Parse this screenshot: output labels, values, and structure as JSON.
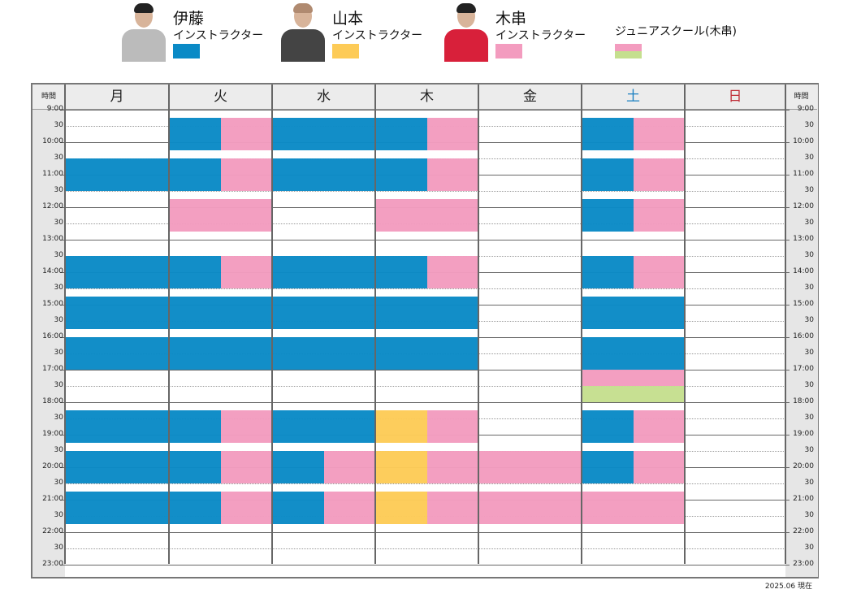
{
  "legend": [
    {
      "name": "伊藤",
      "role": "インストラクター",
      "color": "#0a8ac6",
      "photo": "instructor-ito-photo"
    },
    {
      "name": "山本",
      "role": "インストラクター",
      "color": "#fdcb57",
      "photo": "instructor-yamamoto-photo"
    },
    {
      "name": "木串",
      "role": "インストラクター",
      "color": "#f39cbf",
      "photo": "instructor-kigushi-photo"
    },
    {
      "name": "ジュニアスクール(木串)",
      "colors": [
        "#f39cbf",
        "#c5df8e"
      ]
    }
  ],
  "header": {
    "time_label": "時間",
    "days": [
      "月",
      "火",
      "水",
      "木",
      "金",
      "土",
      "日"
    ],
    "day_colors": [
      "#222",
      "#222",
      "#222",
      "#222",
      "#222",
      "#1a7fc1",
      "#c0303a"
    ]
  },
  "time_labels": [
    "9:00",
    "30",
    "10:00",
    "30",
    "11:00",
    "30",
    "12:00",
    "30",
    "13:00",
    "30",
    "14:00",
    "30",
    "15:00",
    "30",
    "16:00",
    "30",
    "17:00",
    "30",
    "18:00",
    "30",
    "19:00",
    "30",
    "20:00",
    "30",
    "21:00",
    "30",
    "22:00",
    "30",
    "23:00"
  ],
  "colors": {
    "ito": "#0a8ac6",
    "yamamoto": "#fdcb57",
    "kigushi": "#f39cbf",
    "junior": "#c5df8e"
  },
  "schedule": [
    {
      "day": "月",
      "blocks": [
        [
          "10:30",
          "11:30",
          "ito",
          "full"
        ],
        [
          "13:30",
          "14:30",
          "ito",
          "full"
        ],
        [
          "14:45",
          "15:45",
          "ito",
          "full"
        ],
        [
          "16:00",
          "17:00",
          "ito",
          "full"
        ],
        [
          "18:15",
          "19:15",
          "ito",
          "full"
        ],
        [
          "19:30",
          "20:30",
          "ito",
          "full"
        ],
        [
          "20:45",
          "21:45",
          "ito",
          "full"
        ]
      ]
    },
    {
      "day": "火",
      "blocks": [
        [
          "9:15",
          "10:15",
          "ito",
          "left"
        ],
        [
          "9:15",
          "10:15",
          "kigushi",
          "right"
        ],
        [
          "10:30",
          "11:30",
          "ito",
          "left"
        ],
        [
          "10:30",
          "11:30",
          "kigushi",
          "right"
        ],
        [
          "11:45",
          "12:45",
          "kigushi",
          "full"
        ],
        [
          "13:30",
          "14:30",
          "ito",
          "left"
        ],
        [
          "13:30",
          "14:30",
          "kigushi",
          "right"
        ],
        [
          "14:45",
          "15:45",
          "ito",
          "full"
        ],
        [
          "16:00",
          "17:00",
          "ito",
          "full"
        ],
        [
          "18:15",
          "19:15",
          "ito",
          "left"
        ],
        [
          "18:15",
          "19:15",
          "kigushi",
          "right"
        ],
        [
          "19:30",
          "20:30",
          "ito",
          "left"
        ],
        [
          "19:30",
          "20:30",
          "kigushi",
          "right"
        ],
        [
          "20:45",
          "21:45",
          "ito",
          "left"
        ],
        [
          "20:45",
          "21:45",
          "kigushi",
          "right"
        ]
      ]
    },
    {
      "day": "水",
      "blocks": [
        [
          "9:15",
          "10:15",
          "ito",
          "full"
        ],
        [
          "10:30",
          "11:30",
          "ito",
          "full"
        ],
        [
          "13:30",
          "14:30",
          "ito",
          "full"
        ],
        [
          "14:45",
          "15:45",
          "ito",
          "full"
        ],
        [
          "16:00",
          "17:00",
          "ito",
          "full"
        ],
        [
          "18:15",
          "19:15",
          "ito",
          "full"
        ],
        [
          "19:30",
          "20:30",
          "ito",
          "left"
        ],
        [
          "19:30",
          "20:30",
          "kigushi",
          "right"
        ],
        [
          "20:45",
          "21:45",
          "ito",
          "left"
        ],
        [
          "20:45",
          "21:45",
          "kigushi",
          "right"
        ]
      ]
    },
    {
      "day": "木",
      "blocks": [
        [
          "9:15",
          "10:15",
          "ito",
          "left"
        ],
        [
          "9:15",
          "10:15",
          "kigushi",
          "right"
        ],
        [
          "10:30",
          "11:30",
          "ito",
          "left"
        ],
        [
          "10:30",
          "11:30",
          "kigushi",
          "right"
        ],
        [
          "11:45",
          "12:45",
          "kigushi",
          "full"
        ],
        [
          "13:30",
          "14:30",
          "ito",
          "left"
        ],
        [
          "13:30",
          "14:30",
          "kigushi",
          "right"
        ],
        [
          "14:45",
          "15:45",
          "ito",
          "full"
        ],
        [
          "16:00",
          "17:00",
          "ito",
          "full"
        ],
        [
          "18:15",
          "19:15",
          "yamamoto",
          "left"
        ],
        [
          "18:15",
          "19:15",
          "kigushi",
          "right"
        ],
        [
          "19:30",
          "20:30",
          "yamamoto",
          "left"
        ],
        [
          "19:30",
          "20:30",
          "kigushi",
          "right"
        ],
        [
          "20:45",
          "21:45",
          "yamamoto",
          "left"
        ],
        [
          "20:45",
          "21:45",
          "kigushi",
          "right"
        ]
      ]
    },
    {
      "day": "金",
      "blocks": [
        [
          "19:30",
          "20:30",
          "kigushi",
          "full"
        ],
        [
          "20:45",
          "21:45",
          "kigushi",
          "full"
        ]
      ]
    },
    {
      "day": "土",
      "blocks": [
        [
          "9:15",
          "10:15",
          "ito",
          "left"
        ],
        [
          "9:15",
          "10:15",
          "kigushi",
          "right"
        ],
        [
          "10:30",
          "11:30",
          "ito",
          "left"
        ],
        [
          "10:30",
          "11:30",
          "kigushi",
          "right"
        ],
        [
          "11:45",
          "12:45",
          "ito",
          "left"
        ],
        [
          "11:45",
          "12:45",
          "kigushi",
          "right"
        ],
        [
          "13:30",
          "14:30",
          "ito",
          "left"
        ],
        [
          "13:30",
          "14:30",
          "kigushi",
          "right"
        ],
        [
          "14:45",
          "15:45",
          "ito",
          "full"
        ],
        [
          "16:00",
          "17:00",
          "ito",
          "full"
        ],
        [
          "17:00",
          "17:30",
          "kigushi",
          "full"
        ],
        [
          "17:30",
          "18:00",
          "junior",
          "full"
        ],
        [
          "18:15",
          "19:15",
          "ito",
          "left"
        ],
        [
          "18:15",
          "19:15",
          "kigushi",
          "right"
        ],
        [
          "19:30",
          "20:30",
          "ito",
          "left"
        ],
        [
          "19:30",
          "20:30",
          "kigushi",
          "right"
        ],
        [
          "20:45",
          "21:45",
          "kigushi",
          "full"
        ]
      ]
    },
    {
      "day": "日",
      "blocks": []
    }
  ],
  "footer": "2025.06 現在"
}
